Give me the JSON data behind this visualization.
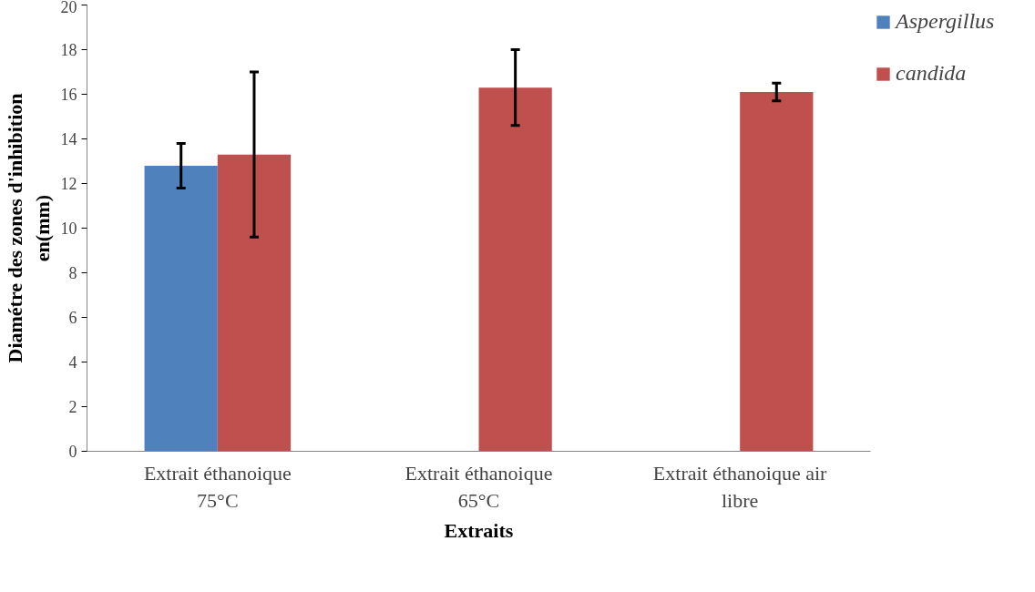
{
  "chart_data": {
    "type": "bar",
    "xlabel": "Extraits",
    "ylabel": "Diamétre des zones d'inhibition en(mm)",
    "categories": [
      "Extrait éthanoique 75°C",
      "Extrait éthanoique 65°C",
      "Extrait éthanoique air libre"
    ],
    "series": [
      {
        "name": "Aspergillus",
        "color": "#4f81bd",
        "values": [
          12.8,
          null,
          null
        ],
        "errors": [
          [
            11.8,
            13.8
          ],
          null,
          null
        ]
      },
      {
        "name": "candida",
        "color": "#c0504d",
        "values": [
          13.3,
          16.3,
          16.1
        ],
        "errors": [
          [
            9.6,
            17.0
          ],
          [
            14.6,
            18.0
          ],
          [
            15.7,
            16.5
          ]
        ]
      }
    ],
    "ylim": [
      0,
      20
    ],
    "yticks": [
      0,
      2,
      4,
      6,
      8,
      10,
      12,
      14,
      16,
      18,
      20
    ],
    "grid": false,
    "legend": "top right"
  }
}
